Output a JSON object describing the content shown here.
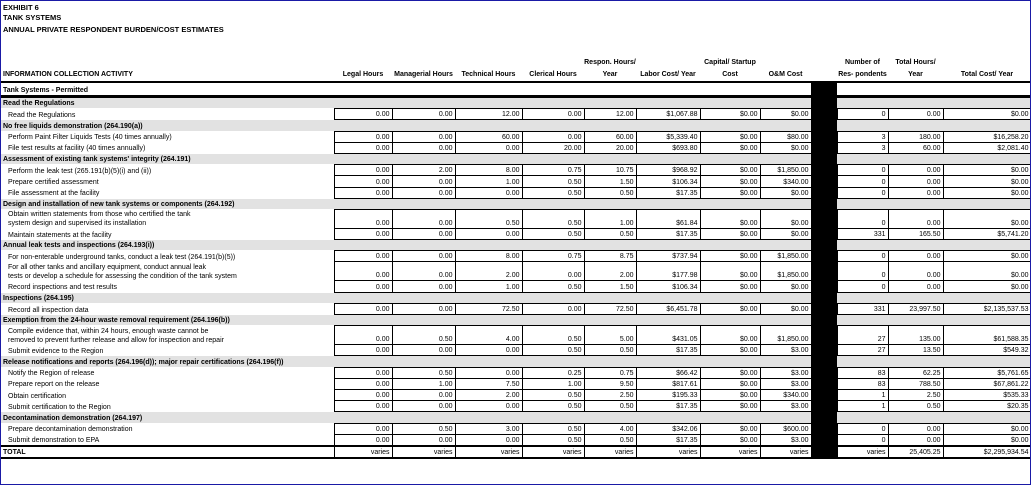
{
  "exhibit": {
    "label": "EXHIBIT 6",
    "subject": "TANK SYSTEMS",
    "title": "ANNUAL PRIVATE RESPONDENT BURDEN/COST ESTIMATES"
  },
  "columns": {
    "activity": "INFORMATION COLLECTION ACTIVITY",
    "legal": "Legal Hours",
    "managerial": "Managerial Hours",
    "technical": "Technical Hours",
    "clerical": "Clerical Hours",
    "respon": "Respon. Hours/ Year",
    "labor": "Labor Cost/ Year",
    "capital": "Capital/ Startup Cost",
    "om": "O&M Cost",
    "number": "Number of Res- pondents",
    "total_hours": "Total Hours/ Year",
    "total_cost": "Total Cost/ Year"
  },
  "section_title": "Tank Systems - Permitted",
  "rows": [
    {
      "type": "sec",
      "label": "Read the Regulations"
    },
    {
      "type": "row",
      "label": "Read the Regulations",
      "v": [
        "0.00",
        "0.00",
        "12.00",
        "0.00",
        "12.00",
        "$1,067.88",
        "$0.00",
        "$0.00",
        "0",
        "0.00",
        "$0.00"
      ]
    },
    {
      "type": "sec",
      "label": "No free liquids demonstration (264.190(a))"
    },
    {
      "type": "row",
      "label": "Perform Paint Filter Liquids Tests (40 times annually)",
      "v": [
        "0.00",
        "0.00",
        "60.00",
        "0.00",
        "60.00",
        "$5,339.40",
        "$0.00",
        "$80.00",
        "3",
        "180.00",
        "$16,258.20"
      ]
    },
    {
      "type": "row",
      "label": "File test results at facility (40 times annually)",
      "v": [
        "0.00",
        "0.00",
        "0.00",
        "20.00",
        "20.00",
        "$693.80",
        "$0.00",
        "$0.00",
        "3",
        "60.00",
        "$2,081.40"
      ]
    },
    {
      "type": "sec",
      "label": "Assessment of existing tank systems' integrity (264.191)"
    },
    {
      "type": "row",
      "label": "Perform the leak test (265.191(b)(5)(i) and (ii))",
      "v": [
        "0.00",
        "2.00",
        "8.00",
        "0.75",
        "10.75",
        "$968.92",
        "$0.00",
        "$1,850.00",
        "0",
        "0.00",
        "$0.00"
      ]
    },
    {
      "type": "row",
      "label": "Prepare certified assessment",
      "v": [
        "0.00",
        "0.00",
        "1.00",
        "0.50",
        "1.50",
        "$106.34",
        "$0.00",
        "$340.00",
        "0",
        "0.00",
        "$0.00"
      ]
    },
    {
      "type": "row",
      "label": "File assessment at the facility",
      "v": [
        "0.00",
        "0.00",
        "0.00",
        "0.50",
        "0.50",
        "$17.35",
        "$0.00",
        "$0.00",
        "0",
        "0.00",
        "$0.00"
      ]
    },
    {
      "type": "sec",
      "label": "Design and installation of new tank systems or components (264.192)"
    },
    {
      "type": "row2",
      "label1": "Obtain written statements from those who certified the tank",
      "label2": "system design and supervised its installation",
      "v": [
        "0.00",
        "0.00",
        "0.50",
        "0.50",
        "1.00",
        "$61.84",
        "$0.00",
        "$0.00",
        "0",
        "0.00",
        "$0.00"
      ]
    },
    {
      "type": "row",
      "label": "Maintain statements at the facility",
      "v": [
        "0.00",
        "0.00",
        "0.00",
        "0.50",
        "0.50",
        "$17.35",
        "$0.00",
        "$0.00",
        "331",
        "165.50",
        "$5,741.20"
      ]
    },
    {
      "type": "sec",
      "label": "Annual leak tests and inspections (264.193(i))"
    },
    {
      "type": "row",
      "label": "For non-enterable underground tanks, conduct a leak test (264.191(b)(5))",
      "v": [
        "0.00",
        "0.00",
        "8.00",
        "0.75",
        "8.75",
        "$737.94",
        "$0.00",
        "$1,850.00",
        "0",
        "0.00",
        "$0.00"
      ]
    },
    {
      "type": "row2",
      "label1": "For all other tanks and ancillary equipment, conduct annual leak",
      "label2": "tests or develop a schedule for assessing the condition of the tank system",
      "v": [
        "0.00",
        "0.00",
        "2.00",
        "0.00",
        "2.00",
        "$177.98",
        "$0.00",
        "$1,850.00",
        "0",
        "0.00",
        "$0.00"
      ]
    },
    {
      "type": "row",
      "label": "Record inspections and test results",
      "v": [
        "0.00",
        "0.00",
        "1.00",
        "0.50",
        "1.50",
        "$106.34",
        "$0.00",
        "$0.00",
        "0",
        "0.00",
        "$0.00"
      ]
    },
    {
      "type": "sec",
      "label": "Inspections (264.195)"
    },
    {
      "type": "row",
      "label": "Record all inspection data",
      "v": [
        "0.00",
        "0.00",
        "72.50",
        "0.00",
        "72.50",
        "$6,451.78",
        "$0.00",
        "$0.00",
        "331",
        "23,997.50",
        "$2,135,537.53"
      ]
    },
    {
      "type": "sec",
      "label": "Exemption from the 24-hour waste removal requirement (264.196(b))"
    },
    {
      "type": "row2",
      "label1": "Compile evidence that, within 24 hours, enough waste cannot be",
      "label2": "removed to prevent further release and allow for inspection and repair",
      "v": [
        "0.00",
        "0.50",
        "4.00",
        "0.50",
        "5.00",
        "$431.05",
        "$0.00",
        "$1,850.00",
        "27",
        "135.00",
        "$61,588.35"
      ]
    },
    {
      "type": "row",
      "label": "Submit evidence to the Region",
      "v": [
        "0.00",
        "0.00",
        "0.00",
        "0.50",
        "0.50",
        "$17.35",
        "$0.00",
        "$3.00",
        "27",
        "13.50",
        "$549.32"
      ]
    },
    {
      "type": "sec",
      "label": "Release notifications and reports (264.196(d)); major repair certifications (264.196(f))"
    },
    {
      "type": "row",
      "label": "Notify the Region of release",
      "v": [
        "0.00",
        "0.50",
        "0.00",
        "0.25",
        "0.75",
        "$66.42",
        "$0.00",
        "$3.00",
        "83",
        "62.25",
        "$5,761.65"
      ]
    },
    {
      "type": "row",
      "label": "Prepare report on the release",
      "v": [
        "0.00",
        "1.00",
        "7.50",
        "1.00",
        "9.50",
        "$817.61",
        "$0.00",
        "$3.00",
        "83",
        "788.50",
        "$67,861.22"
      ]
    },
    {
      "type": "row",
      "label": "Obtain certification",
      "v": [
        "0.00",
        "0.00",
        "2.00",
        "0.50",
        "2.50",
        "$195.33",
        "$0.00",
        "$340.00",
        "1",
        "2.50",
        "$535.33"
      ]
    },
    {
      "type": "row",
      "label": "Submit certification to the Region",
      "v": [
        "0.00",
        "0.00",
        "0.00",
        "0.50",
        "0.50",
        "$17.35",
        "$0.00",
        "$3.00",
        "1",
        "0.50",
        "$20.35"
      ]
    },
    {
      "type": "sec",
      "label": "Decontamination demonstration (264.197)"
    },
    {
      "type": "row",
      "label": "Prepare decontamination demonstration",
      "v": [
        "0.00",
        "0.50",
        "3.00",
        "0.50",
        "4.00",
        "$342.06",
        "$0.00",
        "$600.00",
        "0",
        "0.00",
        "$0.00"
      ]
    },
    {
      "type": "row",
      "label": "Submit demonstration to EPA",
      "v": [
        "0.00",
        "0.00",
        "0.00",
        "0.50",
        "0.50",
        "$17.35",
        "$0.00",
        "$3.00",
        "0",
        "0.00",
        "$0.00"
      ]
    }
  ],
  "total": {
    "label": "TOTAL",
    "v": [
      "varies",
      "varies",
      "varies",
      "varies",
      "varies",
      "varies",
      "varies",
      "varies",
      "varies",
      "25,405.25",
      "$2,295,934.54"
    ]
  }
}
